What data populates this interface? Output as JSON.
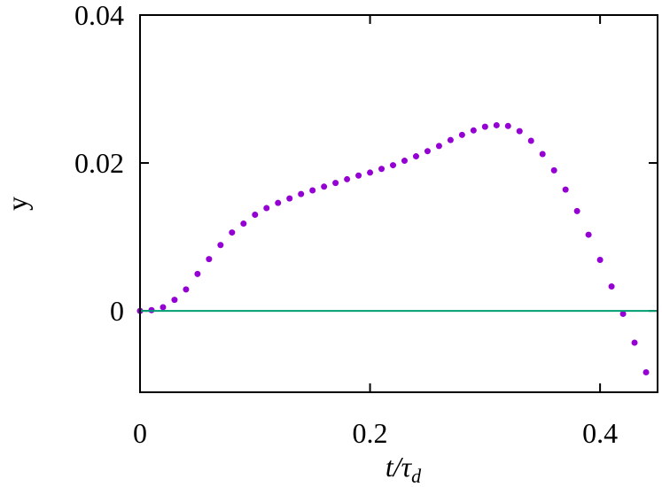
{
  "chart_data": {
    "type": "scatter",
    "xlabel": "t/τ",
    "xlabel_sub": "d",
    "ylabel": "y",
    "xlim": [
      0,
      0.45
    ],
    "ylim": [
      -0.011,
      0.04
    ],
    "xticks": [
      0,
      0.2,
      0.4
    ],
    "yticks": [
      0,
      0.02,
      0.04
    ],
    "series": [
      {
        "color": "#9400d3",
        "style": "points",
        "x": [
          0,
          0.01,
          0.02,
          0.03,
          0.04,
          0.05,
          0.06,
          0.07,
          0.08,
          0.09,
          0.1,
          0.11,
          0.12,
          0.13,
          0.14,
          0.15,
          0.16,
          0.17,
          0.18,
          0.19,
          0.2,
          0.21,
          0.22,
          0.23,
          0.24,
          0.25,
          0.26,
          0.27,
          0.28,
          0.29,
          0.3,
          0.31,
          0.32,
          0.33,
          0.34,
          0.35,
          0.36,
          0.37,
          0.38,
          0.39,
          0.4,
          0.41,
          0.42,
          0.43,
          0.44
        ],
        "values": [
          0,
          0.0001,
          0.0005,
          0.0015,
          0.0029,
          0.005,
          0.007,
          0.0089,
          0.0106,
          0.0118,
          0.013,
          0.0139,
          0.0146,
          0.0152,
          0.0158,
          0.0163,
          0.0168,
          0.0173,
          0.0178,
          0.0183,
          0.0187,
          0.0192,
          0.0197,
          0.0203,
          0.0209,
          0.0216,
          0.0223,
          0.0231,
          0.0238,
          0.0244,
          0.0249,
          0.0251,
          0.025,
          0.0243,
          0.023,
          0.0212,
          0.019,
          0.0164,
          0.0135,
          0.0103,
          0.0069,
          0.0033,
          -0.0004,
          -0.0043,
          -0.0083
        ]
      },
      {
        "color": "#009e73",
        "style": "line",
        "x": [
          0,
          0.45
        ],
        "values": [
          0,
          0
        ]
      }
    ]
  }
}
